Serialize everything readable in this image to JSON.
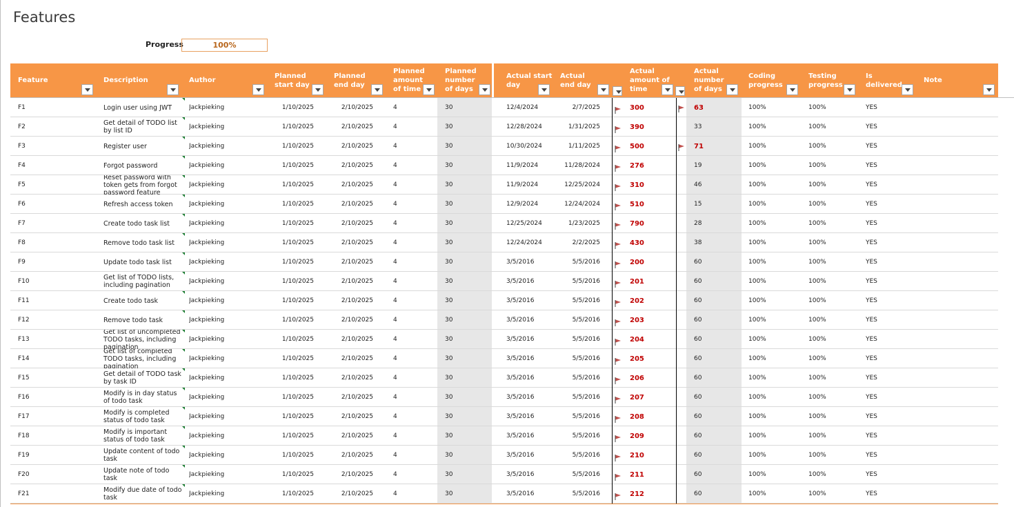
{
  "title": "Features",
  "progress": {
    "label": "Progress",
    "value": "100%"
  },
  "headers": [
    "Feature",
    "Description",
    "Author",
    "Planned start day",
    "Planned end day",
    "Planned amount of time",
    "Planned number of days",
    "Actual start day",
    "Actual end day",
    "Actual amount of time",
    "Actual number of days",
    "Coding progress",
    "Testing progress",
    "Is delivered",
    "Note"
  ],
  "rows": [
    {
      "f": "F1",
      "d": "Login user using JWT",
      "a": "Jackpieking",
      "ps": "1/10/2025",
      "pe": "2/10/2025",
      "pt": "4",
      "pd": "30",
      "as": "12/4/2024",
      "ae": "2/7/2025",
      "at": "300",
      "ad": "63",
      "adf": true,
      "cp": "100%",
      "tp": "100%",
      "dl": "YES"
    },
    {
      "f": "F2",
      "d": "Get detail of TODO list by list ID",
      "a": "Jackpieking",
      "ps": "1/10/2025",
      "pe": "2/10/2025",
      "pt": "4",
      "pd": "30",
      "as": "12/28/2024",
      "ae": "1/31/2025",
      "at": "390",
      "ad": "33",
      "adf": false,
      "cp": "100%",
      "tp": "100%",
      "dl": "YES"
    },
    {
      "f": "F3",
      "d": "Register user",
      "a": "Jackpieking",
      "ps": "1/10/2025",
      "pe": "2/10/2025",
      "pt": "4",
      "pd": "30",
      "as": "10/30/2024",
      "ae": "1/11/2025",
      "at": "500",
      "ad": "71",
      "adf": true,
      "cp": "100%",
      "tp": "100%",
      "dl": "YES"
    },
    {
      "f": "F4",
      "d": "Forgot password",
      "a": "Jackpieking",
      "ps": "1/10/2025",
      "pe": "2/10/2025",
      "pt": "4",
      "pd": "30",
      "as": "11/9/2024",
      "ae": "11/28/2024",
      "at": "276",
      "ad": "19",
      "adf": false,
      "cp": "100%",
      "tp": "100%",
      "dl": "YES"
    },
    {
      "f": "F5",
      "d": "Reset password with token gets from forgot password feature",
      "a": "Jackpieking",
      "ps": "1/10/2025",
      "pe": "2/10/2025",
      "pt": "4",
      "pd": "30",
      "as": "11/9/2024",
      "ae": "12/25/2024",
      "at": "310",
      "ad": "46",
      "adf": false,
      "cp": "100%",
      "tp": "100%",
      "dl": "YES"
    },
    {
      "f": "F6",
      "d": "Refresh access token",
      "a": "Jackpieking",
      "ps": "1/10/2025",
      "pe": "2/10/2025",
      "pt": "4",
      "pd": "30",
      "as": "12/9/2024",
      "ae": "12/24/2024",
      "at": "510",
      "ad": "15",
      "adf": false,
      "cp": "100%",
      "tp": "100%",
      "dl": "YES"
    },
    {
      "f": "F7",
      "d": "Create todo task list",
      "a": "Jackpieking",
      "ps": "1/10/2025",
      "pe": "2/10/2025",
      "pt": "4",
      "pd": "30",
      "as": "12/25/2024",
      "ae": "1/23/2025",
      "at": "790",
      "ad": "28",
      "adf": false,
      "cp": "100%",
      "tp": "100%",
      "dl": "YES"
    },
    {
      "f": "F8",
      "d": "Remove todo task list",
      "a": "Jackpieking",
      "ps": "1/10/2025",
      "pe": "2/10/2025",
      "pt": "4",
      "pd": "30",
      "as": "12/24/2024",
      "ae": "2/2/2025",
      "at": "430",
      "ad": "38",
      "adf": false,
      "cp": "100%",
      "tp": "100%",
      "dl": "YES"
    },
    {
      "f": "F9",
      "d": "Update todo task list",
      "a": "Jackpieking",
      "ps": "1/10/2025",
      "pe": "2/10/2025",
      "pt": "4",
      "pd": "30",
      "as": "3/5/2016",
      "ae": "5/5/2016",
      "at": "200",
      "ad": "60",
      "adf": false,
      "cp": "100%",
      "tp": "100%",
      "dl": "YES"
    },
    {
      "f": "F10",
      "d": "Get list of TODO lists, including pagination",
      "a": "Jackpieking",
      "ps": "1/10/2025",
      "pe": "2/10/2025",
      "pt": "4",
      "pd": "30",
      "as": "3/5/2016",
      "ae": "5/5/2016",
      "at": "201",
      "ad": "60",
      "adf": false,
      "cp": "100%",
      "tp": "100%",
      "dl": "YES"
    },
    {
      "f": "F11",
      "d": "Create todo task",
      "a": "Jackpieking",
      "ps": "1/10/2025",
      "pe": "2/10/2025",
      "pt": "4",
      "pd": "30",
      "as": "3/5/2016",
      "ae": "5/5/2016",
      "at": "202",
      "ad": "60",
      "adf": false,
      "cp": "100%",
      "tp": "100%",
      "dl": "YES"
    },
    {
      "f": "F12",
      "d": "Remove todo task",
      "a": "Jackpieking",
      "ps": "1/10/2025",
      "pe": "2/10/2025",
      "pt": "4",
      "pd": "30",
      "as": "3/5/2016",
      "ae": "5/5/2016",
      "at": "203",
      "ad": "60",
      "adf": false,
      "cp": "100%",
      "tp": "100%",
      "dl": "YES"
    },
    {
      "f": "F13",
      "d": "Get list of uncompleted TODO tasks, including pagination",
      "a": "Jackpieking",
      "ps": "1/10/2025",
      "pe": "2/10/2025",
      "pt": "4",
      "pd": "30",
      "as": "3/5/2016",
      "ae": "5/5/2016",
      "at": "204",
      "ad": "60",
      "adf": false,
      "cp": "100%",
      "tp": "100%",
      "dl": "YES"
    },
    {
      "f": "F14",
      "d": "Get list of completed TODO tasks, including pagination",
      "a": "Jackpieking",
      "ps": "1/10/2025",
      "pe": "2/10/2025",
      "pt": "4",
      "pd": "30",
      "as": "3/5/2016",
      "ae": "5/5/2016",
      "at": "205",
      "ad": "60",
      "adf": false,
      "cp": "100%",
      "tp": "100%",
      "dl": "YES"
    },
    {
      "f": "F15",
      "d": "Get detail of TODO task by task ID",
      "a": "Jackpieking",
      "ps": "1/10/2025",
      "pe": "2/10/2025",
      "pt": "4",
      "pd": "30",
      "as": "3/5/2016",
      "ae": "5/5/2016",
      "at": "206",
      "ad": "60",
      "adf": false,
      "cp": "100%",
      "tp": "100%",
      "dl": "YES"
    },
    {
      "f": "F16",
      "d": "Modify is in day status of todo task",
      "a": "Jackpieking",
      "ps": "1/10/2025",
      "pe": "2/10/2025",
      "pt": "4",
      "pd": "30",
      "as": "3/5/2016",
      "ae": "5/5/2016",
      "at": "207",
      "ad": "60",
      "adf": false,
      "cp": "100%",
      "tp": "100%",
      "dl": "YES"
    },
    {
      "f": "F17",
      "d": "Modify is completed status of todo task",
      "a": "Jackpieking",
      "ps": "1/10/2025",
      "pe": "2/10/2025",
      "pt": "4",
      "pd": "30",
      "as": "3/5/2016",
      "ae": "5/5/2016",
      "at": "208",
      "ad": "60",
      "adf": false,
      "cp": "100%",
      "tp": "100%",
      "dl": "YES"
    },
    {
      "f": "F18",
      "d": "Modify is important status of todo task",
      "a": "Jackpieking",
      "ps": "1/10/2025",
      "pe": "2/10/2025",
      "pt": "4",
      "pd": "30",
      "as": "3/5/2016",
      "ae": "5/5/2016",
      "at": "209",
      "ad": "60",
      "adf": false,
      "cp": "100%",
      "tp": "100%",
      "dl": "YES"
    },
    {
      "f": "F19",
      "d": "Update content of todo task",
      "a": "Jackpieking",
      "ps": "1/10/2025",
      "pe": "2/10/2025",
      "pt": "4",
      "pd": "30",
      "as": "3/5/2016",
      "ae": "5/5/2016",
      "at": "210",
      "ad": "60",
      "adf": false,
      "cp": "100%",
      "tp": "100%",
      "dl": "YES"
    },
    {
      "f": "F20",
      "d": "Update note of todo task",
      "a": "Jackpieking",
      "ps": "1/10/2025",
      "pe": "2/10/2025",
      "pt": "4",
      "pd": "30",
      "as": "3/5/2016",
      "ae": "5/5/2016",
      "at": "211",
      "ad": "60",
      "adf": false,
      "cp": "100%",
      "tp": "100%",
      "dl": "YES"
    },
    {
      "f": "F21",
      "d": "Modify due date of todo task",
      "a": "Jackpieking",
      "ps": "1/10/2025",
      "pe": "2/10/2025",
      "pt": "4",
      "pd": "30",
      "as": "3/5/2016",
      "ae": "5/5/2016",
      "at": "212",
      "ad": "60",
      "adf": false,
      "cp": "100%",
      "tp": "100%",
      "dl": "YES"
    }
  ],
  "colors": {
    "header_bg": "#f79646",
    "alert_red": "#c00000",
    "grey_col": "#e7e7e7",
    "comment_marker": "#1e7e34"
  },
  "icons": {
    "filter": "dropdown-filter-icon",
    "flag": "red-flag-icon",
    "comment": "comment-indicator-icon"
  }
}
